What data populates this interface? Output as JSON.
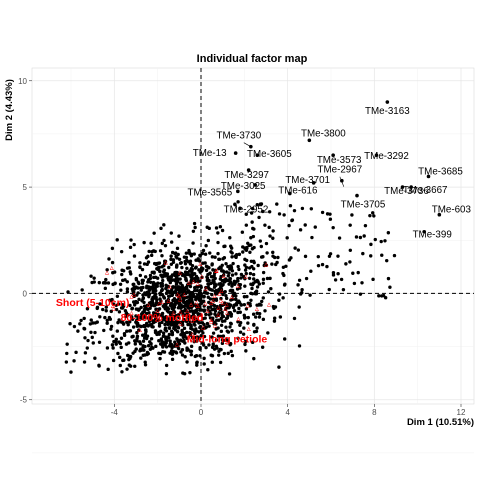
{
  "chart_data": {
    "type": "scatter",
    "title": "Individual factor map",
    "xlabel": "Dim 1 (10.51%)",
    "ylabel": "Dim 2 (4.43%)",
    "xlim": [
      -7.8,
      12.6
    ],
    "ylim": [
      -5.2,
      10.6
    ],
    "x_ticks": [
      -4,
      0,
      4,
      8,
      12
    ],
    "y_ticks": [
      -5,
      0,
      5,
      10
    ],
    "grid": true,
    "reference_lines": {
      "x": 0,
      "y": 0,
      "style": "dashed"
    },
    "labeled_points": [
      {
        "label": "TMe-3163",
        "x": 8.6,
        "y": 9.0
      },
      {
        "label": "TMe-3800",
        "x": 5.0,
        "y": 7.2
      },
      {
        "label": "TMe-3730",
        "x": 2.3,
        "y": 6.9
      },
      {
        "label": "TMe-3573",
        "x": 6.1,
        "y": 6.5
      },
      {
        "label": "TMe-3292",
        "x": 8.1,
        "y": 6.5
      },
      {
        "label": "TMe-13",
        "x": 1.6,
        "y": 6.6
      },
      {
        "label": "TMe-3605",
        "x": 2.6,
        "y": 6.5
      },
      {
        "label": "TMe-3297",
        "x": 2.2,
        "y": 5.8
      },
      {
        "label": "TMe-2967",
        "x": 6.5,
        "y": 5.3
      },
      {
        "label": "TMe-3736",
        "x": 9.3,
        "y": 5.0
      },
      {
        "label": "TMe-3685",
        "x": 10.5,
        "y": 5.5
      },
      {
        "label": "TMe-3025",
        "x": 2.5,
        "y": 5.1
      },
      {
        "label": "TMe-3701",
        "x": 5.2,
        "y": 5.2
      },
      {
        "label": "TMe-3565",
        "x": 1.7,
        "y": 4.8
      },
      {
        "label": "TMe-3667",
        "x": 9.7,
        "y": 5.0
      },
      {
        "label": "TMe-616",
        "x": 4.1,
        "y": 4.7
      },
      {
        "label": "TMe-3705",
        "x": 7.2,
        "y": 4.6
      },
      {
        "label": "TMe-2952",
        "x": 1.8,
        "y": 4.0
      },
      {
        "label": "TMe-603",
        "x": 11.0,
        "y": 3.7
      },
      {
        "label": "TMe-399",
        "x": 10.3,
        "y": 2.9
      }
    ],
    "category_labels": [
      {
        "label": "Short (5-10cm)",
        "x": -5.0,
        "y": -0.6,
        "color": "#ff0000"
      },
      {
        "label": "80-100% mottled",
        "x": -1.8,
        "y": -1.3,
        "color": "#ff0000"
      },
      {
        "label": "Mid-long petiole",
        "x": 1.2,
        "y": -2.3,
        "color": "#ff0000"
      }
    ],
    "point_color": "#000000",
    "category_color": "#ff0000"
  }
}
